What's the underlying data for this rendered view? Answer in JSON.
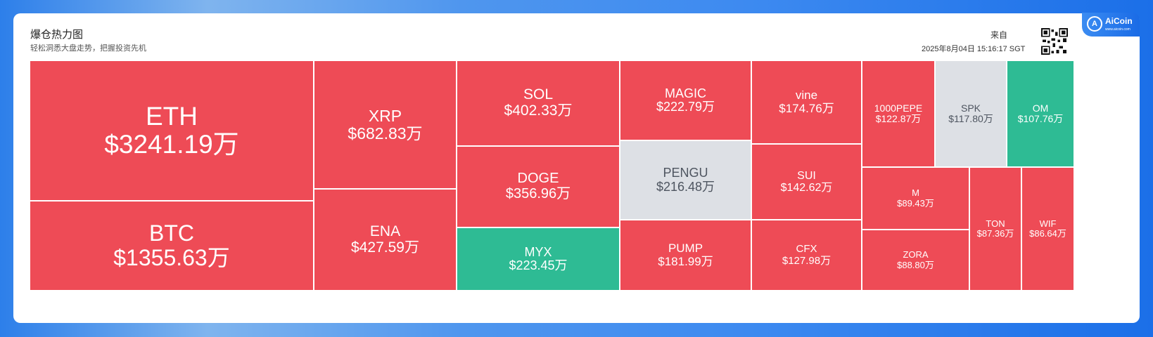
{
  "header": {
    "title": "爆仓热力图",
    "subtitle": "轻松洞悉大盘走势，把握投资先机",
    "from_label": "来自",
    "timestamp": "2025年8月04日 15:16:17 SGT",
    "logo_mark": "A",
    "logo_text": "AiCoin",
    "logo_url": "www.aicoin.com"
  },
  "colors": {
    "red": "#ee4b56",
    "green": "#2ebb94",
    "gray": "#dde0e5",
    "gray_text": "#4e5560"
  },
  "chart_data": {
    "type": "treemap",
    "unit": "万",
    "items": [
      {
        "name": "ETH",
        "label": "$3241.19万",
        "value": 3241.19,
        "color": "red"
      },
      {
        "name": "BTC",
        "label": "$1355.63万",
        "value": 1355.63,
        "color": "red"
      },
      {
        "name": "XRP",
        "label": "$682.83万",
        "value": 682.83,
        "color": "red"
      },
      {
        "name": "ENA",
        "label": "$427.59万",
        "value": 427.59,
        "color": "red"
      },
      {
        "name": "SOL",
        "label": "$402.33万",
        "value": 402.33,
        "color": "red"
      },
      {
        "name": "DOGE",
        "label": "$356.96万",
        "value": 356.96,
        "color": "red"
      },
      {
        "name": "MYX",
        "label": "$223.45万",
        "value": 223.45,
        "color": "green"
      },
      {
        "name": "MAGIC",
        "label": "$222.79万",
        "value": 222.79,
        "color": "red"
      },
      {
        "name": "PENGU",
        "label": "$216.48万",
        "value": 216.48,
        "color": "gray"
      },
      {
        "name": "PUMP",
        "label": "$181.99万",
        "value": 181.99,
        "color": "red"
      },
      {
        "name": "vine",
        "label": "$174.76万",
        "value": 174.76,
        "color": "red"
      },
      {
        "name": "SUI",
        "label": "$142.62万",
        "value": 142.62,
        "color": "red"
      },
      {
        "name": "CFX",
        "label": "$127.98万",
        "value": 127.98,
        "color": "red"
      },
      {
        "name": "1000PEPE",
        "label": "$122.87万",
        "value": 122.87,
        "color": "red"
      },
      {
        "name": "SPK",
        "label": "$117.80万",
        "value": 117.8,
        "color": "gray"
      },
      {
        "name": "OM",
        "label": "$107.76万",
        "value": 107.76,
        "color": "green"
      },
      {
        "name": "M",
        "label": "$89.43万",
        "value": 89.43,
        "color": "red"
      },
      {
        "name": "ZORA",
        "label": "$88.80万",
        "value": 88.8,
        "color": "red"
      },
      {
        "name": "TON",
        "label": "$87.36万",
        "value": 87.36,
        "color": "red"
      },
      {
        "name": "WIF",
        "label": "$86.64万",
        "value": 86.64,
        "color": "red"
      }
    ]
  }
}
